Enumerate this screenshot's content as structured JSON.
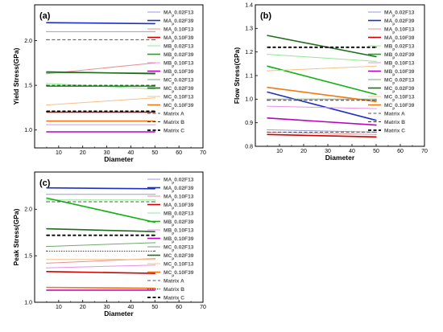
{
  "chart_data": [
    {
      "type": "line",
      "panel_label": "(a)",
      "xlabel": "Diameter",
      "ylabel": "Yield Stress(GPa)",
      "xlim": [
        0,
        70
      ],
      "ylim": [
        0.8,
        2.4
      ],
      "xticks": [
        "10",
        "20",
        "30",
        "40",
        "50",
        "60",
        "70"
      ],
      "yticks": [
        "1.0",
        "1.5",
        "2.0"
      ],
      "series": [
        {
          "name": "MAp0.02F13",
          "color": "#9a9adc",
          "dash": "solid",
          "width": 1,
          "x": [
            5,
            50
          ],
          "y": [
            2.1,
            2.1
          ]
        },
        {
          "name": "MAp0.02F39",
          "color": "#1f2fc4",
          "dash": "solid",
          "width": 1.6,
          "x": [
            5,
            50
          ],
          "y": [
            2.2,
            2.19
          ]
        },
        {
          "name": "MAp0.10F13",
          "color": "#e89090",
          "dash": "solid",
          "width": 1,
          "x": [
            5,
            50
          ],
          "y": [
            1.63,
            1.75
          ]
        },
        {
          "name": "MAp0.10F39",
          "color": "#d00000",
          "dash": "solid",
          "width": 1.6,
          "x": [
            5,
            50
          ],
          "y": [
            1.2,
            1.2
          ]
        },
        {
          "name": "MBp0.02F13",
          "color": "#90e890",
          "dash": "solid",
          "width": 1,
          "x": [
            5,
            50
          ],
          "y": [
            1.52,
            1.46
          ]
        },
        {
          "name": "MBp0.02F39",
          "color": "#10b010",
          "dash": "solid",
          "width": 1.6,
          "x": [
            5,
            50
          ],
          "y": [
            1.49,
            1.49
          ]
        },
        {
          "name": "MBp0.10F13",
          "color": "#e890e8",
          "dash": "solid",
          "width": 1,
          "x": [
            5,
            50
          ],
          "y": [
            1.06,
            1.06
          ]
        },
        {
          "name": "MBp0.10F39",
          "color": "#c000c0",
          "dash": "solid",
          "width": 1.6,
          "x": [
            5,
            50
          ],
          "y": [
            0.98,
            0.98
          ]
        },
        {
          "name": "MCp0.02F13",
          "color": "#6fa86f",
          "dash": "solid",
          "width": 1,
          "x": [
            5,
            50
          ],
          "y": [
            1.64,
            1.64
          ]
        },
        {
          "name": "MCp0.02F39",
          "color": "#1c6e1c",
          "dash": "solid",
          "width": 1.6,
          "x": [
            5,
            50
          ],
          "y": [
            1.65,
            1.63
          ]
        },
        {
          "name": "MCp0.10F13",
          "color": "#f6c08a",
          "dash": "solid",
          "width": 1,
          "x": [
            5,
            50
          ],
          "y": [
            1.28,
            1.36
          ]
        },
        {
          "name": "MCp0.10F39",
          "color": "#f07a10",
          "dash": "solid",
          "width": 1.6,
          "x": [
            5,
            50
          ],
          "y": [
            1.1,
            1.1
          ]
        },
        {
          "name": "Matrix A",
          "color": "#555555",
          "dash": "dashed",
          "width": 1,
          "x": [
            5,
            50
          ],
          "y": [
            2.01,
            2.01
          ]
        },
        {
          "name": "Matrix B",
          "color": "#333333",
          "dash": "dashed",
          "width": 1,
          "x": [
            5,
            50
          ],
          "y": [
            1.5,
            1.5
          ]
        },
        {
          "name": "Matrix C",
          "color": "#000000",
          "dash": "dashed",
          "width": 1.8,
          "x": [
            5,
            50
          ],
          "y": [
            1.21,
            1.21
          ]
        }
      ]
    },
    {
      "type": "line",
      "panel_label": "(b)",
      "xlabel": "Diameter",
      "ylabel": "Flow Stress(GPa)",
      "xlim": [
        0,
        70
      ],
      "ylim": [
        0.8,
        1.4
      ],
      "xticks": [
        "10",
        "20",
        "30",
        "40",
        "50",
        "60",
        "70"
      ],
      "yticks": [
        "0.8",
        "0.9",
        "1.0",
        "1.1",
        "1.2",
        "1.3",
        "1.4"
      ],
      "series": [
        {
          "name": "MAp0.02F13",
          "color": "#9a9adc",
          "dash": "solid",
          "width": 1,
          "x": [
            5,
            50
          ],
          "y": [
            0.87,
            0.86
          ]
        },
        {
          "name": "MAp0.02F39",
          "color": "#1f2fc4",
          "dash": "solid",
          "width": 1.6,
          "x": [
            5,
            50
          ],
          "y": [
            1.03,
            0.91
          ]
        },
        {
          "name": "MAp0.10F13",
          "color": "#e89090",
          "dash": "solid",
          "width": 1,
          "x": [
            5,
            50
          ],
          "y": [
            0.86,
            0.85
          ]
        },
        {
          "name": "MAp0.10F39",
          "color": "#d00000",
          "dash": "solid",
          "width": 1.6,
          "x": [
            5,
            50
          ],
          "y": [
            0.85,
            0.84
          ]
        },
        {
          "name": "MBp0.02F13",
          "color": "#90e890",
          "dash": "solid",
          "width": 1,
          "x": [
            5,
            50
          ],
          "y": [
            1.19,
            1.16
          ]
        },
        {
          "name": "MBp0.02F39",
          "color": "#10b010",
          "dash": "solid",
          "width": 1.6,
          "x": [
            5,
            50
          ],
          "y": [
            1.14,
            1.02
          ]
        },
        {
          "name": "MBp0.10F13",
          "color": "#e890e8",
          "dash": "solid",
          "width": 1,
          "x": [
            5,
            50
          ],
          "y": [
            0.97,
            0.96
          ]
        },
        {
          "name": "MBp0.10F39",
          "color": "#c000c0",
          "dash": "solid",
          "width": 1.6,
          "x": [
            5,
            50
          ],
          "y": [
            0.92,
            0.89
          ]
        },
        {
          "name": "MCp0.02F13",
          "color": "#6fa86f",
          "dash": "solid",
          "width": 1,
          "x": [
            5,
            50
          ],
          "y": [
            1.0,
            1.0
          ]
        },
        {
          "name": "MCp0.02F39",
          "color": "#1c6e1c",
          "dash": "solid",
          "width": 1.6,
          "x": [
            5,
            50
          ],
          "y": [
            1.27,
            1.18
          ]
        },
        {
          "name": "MCp0.10F13",
          "color": "#f6c08a",
          "dash": "solid",
          "width": 1,
          "x": [
            5,
            50
          ],
          "y": [
            1.12,
            1.14
          ]
        },
        {
          "name": "MCp0.10F39",
          "color": "#f07a10",
          "dash": "solid",
          "width": 1.6,
          "x": [
            5,
            50
          ],
          "y": [
            1.05,
            0.99
          ]
        },
        {
          "name": "Matrix A",
          "color": "#555555",
          "dash": "dashed",
          "width": 1,
          "x": [
            5,
            50
          ],
          "y": [
            0.86,
            0.86
          ]
        },
        {
          "name": "Matrix B",
          "color": "#333333",
          "dash": "dashed",
          "width": 1,
          "x": [
            5,
            50
          ],
          "y": [
            0.995,
            0.995
          ]
        },
        {
          "name": "Matrix C",
          "color": "#000000",
          "dash": "dashed",
          "width": 1.8,
          "x": [
            5,
            50
          ],
          "y": [
            1.22,
            1.22
          ]
        }
      ]
    },
    {
      "type": "line",
      "panel_label": "(c)",
      "xlabel": "Diameter",
      "ylabel": "Peak Stress(GPa)",
      "xlim": [
        0,
        70
      ],
      "ylim": [
        1.0,
        2.4
      ],
      "xticks": [
        "10",
        "20",
        "30",
        "40",
        "50",
        "60",
        "70"
      ],
      "yticks": [
        "1.0",
        "1.5",
        "2.0"
      ],
      "series": [
        {
          "name": "MAp0.02F13",
          "color": "#9a9adc",
          "dash": "solid",
          "width": 1,
          "x": [
            5,
            50
          ],
          "y": [
            2.16,
            2.16
          ]
        },
        {
          "name": "MAp0.02F39",
          "color": "#1f2fc4",
          "dash": "solid",
          "width": 1.6,
          "x": [
            5,
            50
          ],
          "y": [
            2.23,
            2.22
          ]
        },
        {
          "name": "MAp0.10F13",
          "color": "#e89090",
          "dash": "solid",
          "width": 1,
          "x": [
            5,
            50
          ],
          "y": [
            1.42,
            1.47
          ]
        },
        {
          "name": "MAp0.10F39",
          "color": "#d00000",
          "dash": "solid",
          "width": 1.6,
          "x": [
            5,
            50
          ],
          "y": [
            1.33,
            1.31
          ]
        },
        {
          "name": "MBp0.02F13",
          "color": "#90e890",
          "dash": "solid",
          "width": 1,
          "x": [
            5,
            50
          ],
          "y": [
            2.1,
            2.1
          ]
        },
        {
          "name": "MBp0.02F39",
          "color": "#10b010",
          "dash": "solid",
          "width": 1.6,
          "x": [
            5,
            50
          ],
          "y": [
            2.12,
            1.86
          ]
        },
        {
          "name": "MBp0.10F13",
          "color": "#e890e8",
          "dash": "solid",
          "width": 1,
          "x": [
            5,
            50
          ],
          "y": [
            1.37,
            1.4
          ]
        },
        {
          "name": "MBp0.10F39",
          "color": "#c000c0",
          "dash": "solid",
          "width": 1.6,
          "x": [
            5,
            50
          ],
          "y": [
            1.13,
            1.13
          ]
        },
        {
          "name": "MCp0.02F13",
          "color": "#6fa86f",
          "dash": "solid",
          "width": 1,
          "x": [
            5,
            50
          ],
          "y": [
            1.6,
            1.64
          ]
        },
        {
          "name": "MCp0.02F39",
          "color": "#1c6e1c",
          "dash": "solid",
          "width": 1.6,
          "x": [
            5,
            50
          ],
          "y": [
            1.79,
            1.76
          ]
        },
        {
          "name": "MCp0.10F13",
          "color": "#f6c08a",
          "dash": "solid",
          "width": 1,
          "x": [
            5,
            50
          ],
          "y": [
            1.46,
            1.46
          ]
        },
        {
          "name": "MCp0.10F39",
          "color": "#f07a10",
          "dash": "solid",
          "width": 1.6,
          "x": [
            5,
            50
          ],
          "y": [
            1.16,
            1.15
          ]
        },
        {
          "name": "Matrix A",
          "color": "#555555",
          "dash": "dashed",
          "width": 1,
          "x": [
            5,
            50
          ],
          "y": [
            2.08,
            2.08
          ]
        },
        {
          "name": "Matrix B",
          "color": "#333333",
          "dash": "dotted",
          "width": 1,
          "x": [
            5,
            50
          ],
          "y": [
            1.55,
            1.55
          ]
        },
        {
          "name": "Matrix C",
          "color": "#000000",
          "dash": "dashed",
          "width": 1.8,
          "x": [
            5,
            50
          ],
          "y": [
            1.72,
            1.72
          ]
        }
      ]
    }
  ]
}
